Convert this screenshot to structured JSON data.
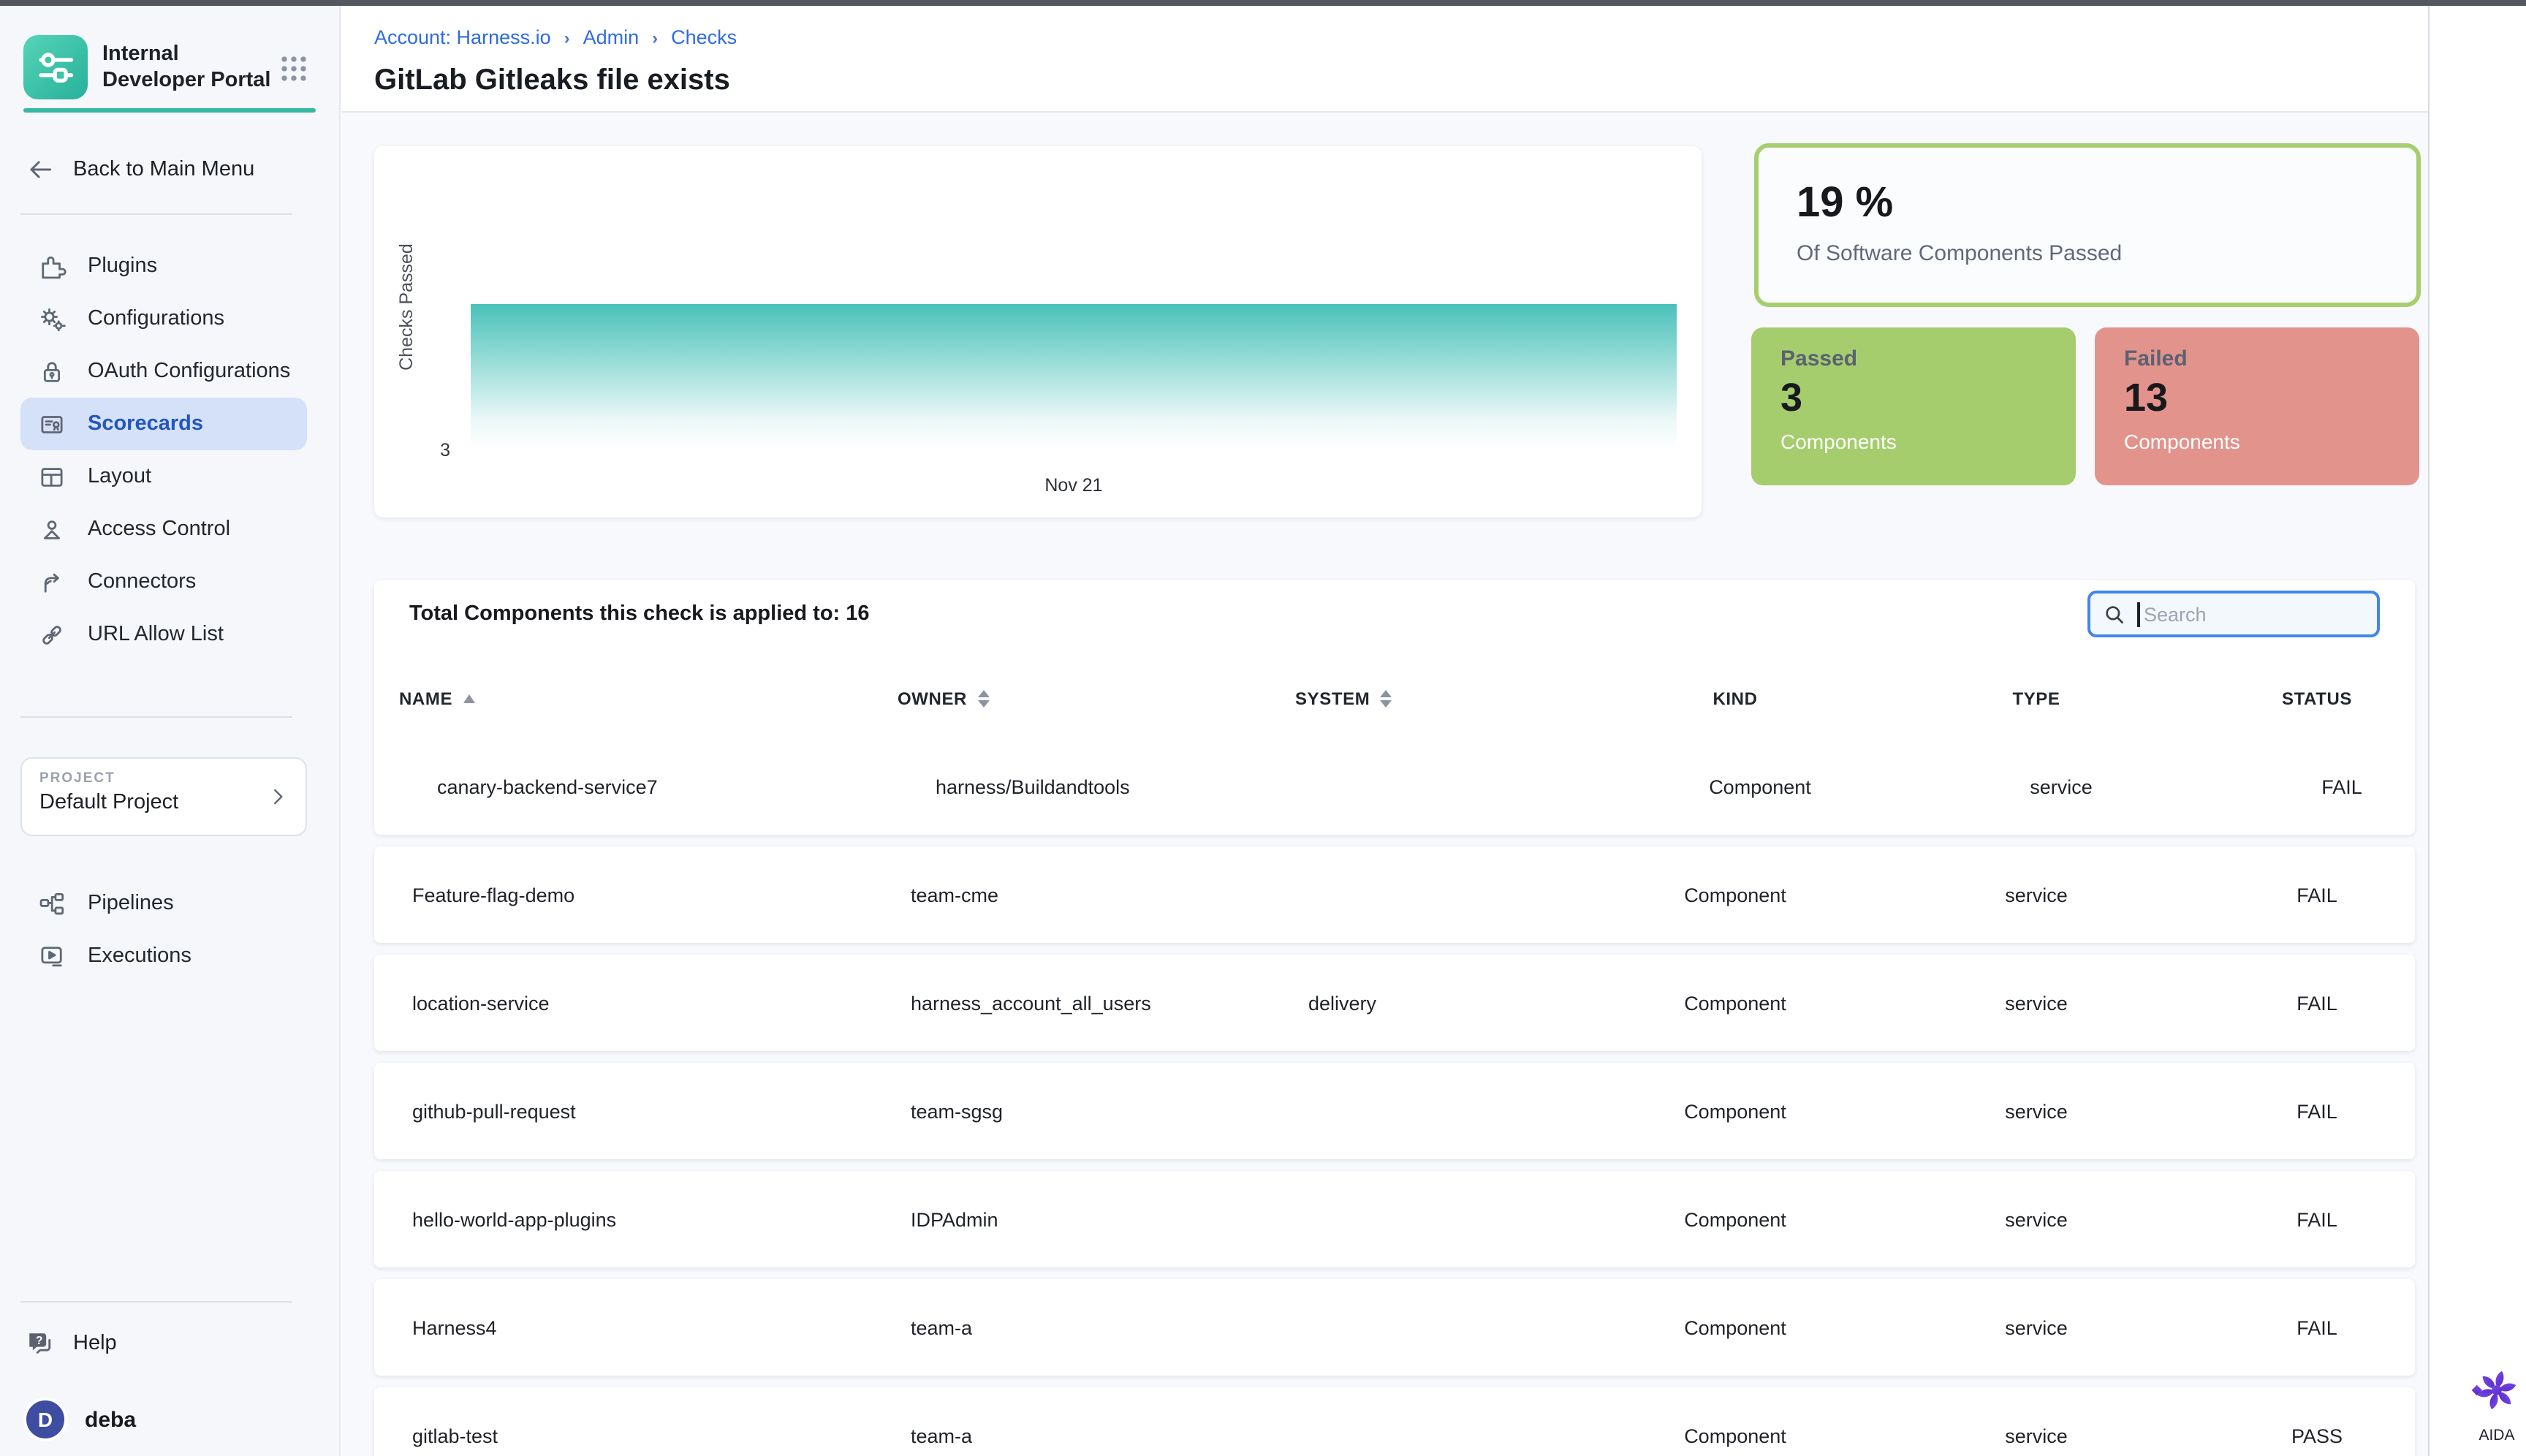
{
  "sidebar": {
    "app_title": "Internal Developer Portal",
    "back_label": "Back to Main Menu",
    "items": [
      {
        "label": "Plugins",
        "active": false
      },
      {
        "label": "Configurations",
        "active": false
      },
      {
        "label": "OAuth Configurations",
        "active": false
      },
      {
        "label": "Scorecards",
        "active": true
      },
      {
        "label": "Layout",
        "active": false
      },
      {
        "label": "Access Control",
        "active": false
      },
      {
        "label": "Connectors",
        "active": false
      },
      {
        "label": "URL Allow List",
        "active": false
      }
    ],
    "project": {
      "label": "PROJECT",
      "name": "Default Project"
    },
    "project_items": [
      {
        "label": "Pipelines"
      },
      {
        "label": "Executions"
      }
    ],
    "help_label": "Help",
    "user": {
      "initial": "D",
      "name": "deba"
    }
  },
  "header": {
    "breadcrumbs": [
      "Account: Harness.io",
      "Admin",
      "Checks"
    ],
    "title": "GitLab Gitleaks file exists"
  },
  "chart_data": {
    "type": "area",
    "x": [
      "Nov 21"
    ],
    "series": [
      {
        "name": "Checks Passed",
        "values": [
          3
        ]
      }
    ],
    "ylabel": "Checks Passed",
    "ytick_labels": [
      "3"
    ],
    "xtick_labels": [
      "Nov 21"
    ],
    "ylim": [
      0,
      3
    ],
    "area_color": "#49c1b9",
    "grid": false,
    "legend_position": "none"
  },
  "stats": {
    "percent": "19 %",
    "percent_caption": "Of Software Components Passed",
    "percent_border_color": "#a7ce6e",
    "passed": {
      "label": "Passed",
      "value": "3",
      "caption": "Components",
      "color": "#a6cd6d"
    },
    "failed": {
      "label": "Failed",
      "value": "13",
      "caption": "Components",
      "color": "#e2938c"
    }
  },
  "table": {
    "summary": "Total Components this check is applied to: 16",
    "search_placeholder": "Search",
    "columns": [
      {
        "label": "NAME",
        "sort": "asc",
        "align": "left"
      },
      {
        "label": "OWNER",
        "sort": "both",
        "align": "left"
      },
      {
        "label": "SYSTEM",
        "sort": "both",
        "align": "left"
      },
      {
        "label": "KIND",
        "sort": null,
        "align": "center"
      },
      {
        "label": "TYPE",
        "sort": null,
        "align": "center"
      },
      {
        "label": "STATUS",
        "sort": null,
        "align": "center"
      }
    ],
    "rows": [
      {
        "name": "canary-backend-service7",
        "owner": "harness/Buildandtools",
        "system": "",
        "kind": "Component",
        "type": "service",
        "status": "FAIL"
      },
      {
        "name": "Feature-flag-demo",
        "owner": "team-cme",
        "system": "",
        "kind": "Component",
        "type": "service",
        "status": "FAIL"
      },
      {
        "name": "location-service",
        "owner": "harness_account_all_users",
        "system": "delivery",
        "kind": "Component",
        "type": "service",
        "status": "FAIL"
      },
      {
        "name": "github-pull-request",
        "owner": "team-sgsg",
        "system": "",
        "kind": "Component",
        "type": "service",
        "status": "FAIL"
      },
      {
        "name": "hello-world-app-plugins",
        "owner": "IDPAdmin",
        "system": "",
        "kind": "Component",
        "type": "service",
        "status": "FAIL"
      },
      {
        "name": "Harness4",
        "owner": "team-a",
        "system": "",
        "kind": "Component",
        "type": "service",
        "status": "FAIL"
      },
      {
        "name": "gitlab-test",
        "owner": "team-a",
        "system": "",
        "kind": "Component",
        "type": "service",
        "status": "PASS"
      }
    ]
  },
  "aida": {
    "label": "AIDA"
  }
}
